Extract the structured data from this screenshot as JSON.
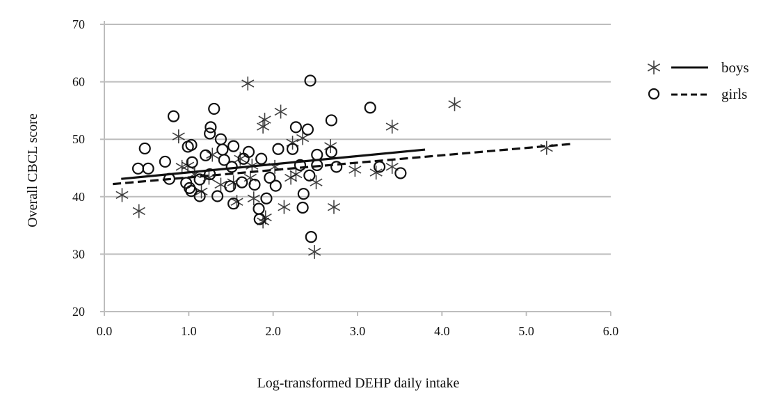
{
  "chart_data": {
    "type": "scatter",
    "title": "",
    "xlabel": "Log-transformed DEHP daily intake",
    "ylabel": "Overall CBCL score",
    "xlim": [
      0,
      6
    ],
    "ylim": [
      20,
      70
    ],
    "xticks": [
      "0.0",
      "1.0",
      "2.0",
      "3.0",
      "4.0",
      "5.0",
      "6.0"
    ],
    "yticks": [
      "20",
      "30",
      "40",
      "50",
      "60",
      "70"
    ],
    "grid": "horizontal",
    "legend_position": "right",
    "series": [
      {
        "name": "boys",
        "marker": "asterisk",
        "line_style": "solid",
        "fit_line": [
          [
            0.2,
            43.1
          ],
          [
            3.8,
            48.2
          ]
        ],
        "points": [
          [
            0.21,
            40.3
          ],
          [
            0.41,
            37.5
          ],
          [
            0.88,
            50.5
          ],
          [
            1.7,
            59.7
          ],
          [
            2.09,
            54.8
          ],
          [
            1.9,
            53.4
          ],
          [
            1.88,
            52.2
          ],
          [
            3.41,
            52.2
          ],
          [
            4.15,
            56.1
          ],
          [
            5.24,
            48.5
          ],
          [
            2.49,
            30.4
          ],
          [
            2.72,
            38.2
          ],
          [
            2.13,
            38.2
          ],
          [
            1.88,
            35.7
          ],
          [
            1.91,
            36.4
          ],
          [
            2.97,
            44.7
          ],
          [
            3.22,
            44.2
          ],
          [
            3.41,
            45.2
          ],
          [
            2.51,
            42.5
          ],
          [
            2.21,
            43.3
          ],
          [
            2.27,
            43.9
          ],
          [
            2.35,
            50.2
          ],
          [
            2.23,
            49.4
          ],
          [
            2.68,
            48.8
          ],
          [
            1.53,
            42.5
          ],
          [
            1.57,
            39.1
          ],
          [
            0.92,
            45.2
          ],
          [
            1.07,
            43.9
          ],
          [
            1.24,
            43.3
          ],
          [
            1.38,
            42.1
          ],
          [
            1.15,
            40.9
          ],
          [
            1.75,
            45.4
          ],
          [
            1.61,
            46.6
          ],
          [
            2.02,
            45.2
          ],
          [
            1.73,
            43.3
          ],
          [
            1.28,
            47.3
          ],
          [
            0.99,
            45.4
          ],
          [
            1.77,
            39.7
          ]
        ]
      },
      {
        "name": "girls",
        "marker": "circle",
        "line_style": "dashed",
        "fit_line": [
          [
            0.1,
            42.2
          ],
          [
            5.55,
            49.2
          ]
        ],
        "points": [
          [
            0.82,
            54.0
          ],
          [
            1.3,
            55.3
          ],
          [
            2.44,
            60.2
          ],
          [
            3.15,
            55.5
          ],
          [
            2.69,
            53.3
          ],
          [
            0.48,
            48.4
          ],
          [
            0.4,
            44.9
          ],
          [
            0.52,
            44.9
          ],
          [
            0.72,
            46.1
          ],
          [
            0.77,
            43.1
          ],
          [
            0.99,
            48.7
          ],
          [
            1.03,
            49.0
          ],
          [
            1.04,
            46.0
          ],
          [
            0.97,
            42.4
          ],
          [
            1.01,
            41.5
          ],
          [
            1.03,
            41.0
          ],
          [
            1.13,
            40.1
          ],
          [
            1.13,
            43.0
          ],
          [
            1.2,
            47.2
          ],
          [
            1.26,
            52.1
          ],
          [
            1.25,
            51.0
          ],
          [
            1.25,
            43.9
          ],
          [
            1.34,
            40.1
          ],
          [
            1.38,
            50.0
          ],
          [
            1.4,
            48.2
          ],
          [
            1.42,
            46.4
          ],
          [
            1.51,
            45.2
          ],
          [
            1.53,
            48.8
          ],
          [
            1.49,
            41.8
          ],
          [
            1.53,
            38.8
          ],
          [
            1.63,
            42.5
          ],
          [
            1.65,
            46.6
          ],
          [
            1.71,
            47.8
          ],
          [
            1.78,
            42.1
          ],
          [
            1.83,
            37.9
          ],
          [
            1.84,
            36.1
          ],
          [
            1.86,
            46.6
          ],
          [
            1.92,
            39.7
          ],
          [
            1.96,
            43.3
          ],
          [
            2.03,
            41.9
          ],
          [
            2.06,
            48.3
          ],
          [
            2.23,
            48.3
          ],
          [
            2.27,
            52.1
          ],
          [
            2.41,
            51.7
          ],
          [
            2.32,
            45.5
          ],
          [
            2.35,
            38.1
          ],
          [
            2.36,
            40.5
          ],
          [
            2.43,
            43.7
          ],
          [
            2.45,
            33.0
          ],
          [
            2.52,
            47.3
          ],
          [
            2.52,
            45.5
          ],
          [
            2.69,
            47.8
          ],
          [
            2.75,
            45.2
          ],
          [
            3.26,
            45.2
          ],
          [
            3.51,
            44.1
          ]
        ]
      }
    ],
    "colors": {
      "marker": "#111111",
      "grid": "#bdbdbd"
    }
  }
}
